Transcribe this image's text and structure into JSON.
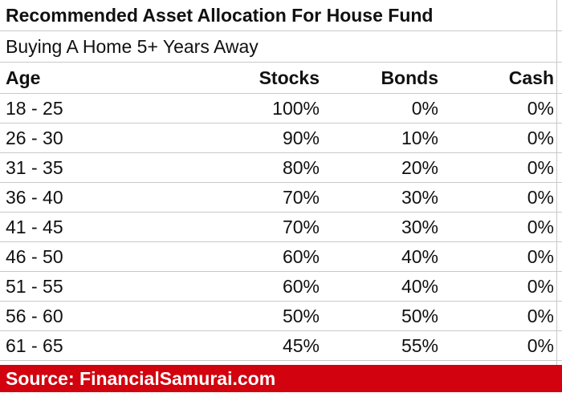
{
  "table": {
    "title": "Recommended Asset Allocation For House Fund",
    "subtitle": "Buying A Home 5+ Years Away",
    "headers": {
      "age": "Age",
      "stocks": "Stocks",
      "bonds": "Bonds",
      "cash": "Cash"
    },
    "rows": [
      {
        "age": "18 - 25",
        "stocks": "100%",
        "bonds": "0%",
        "cash": "0%"
      },
      {
        "age": "26 - 30",
        "stocks": "90%",
        "bonds": "10%",
        "cash": "0%"
      },
      {
        "age": "31 - 35",
        "stocks": "80%",
        "bonds": "20%",
        "cash": "0%"
      },
      {
        "age": "36 - 40",
        "stocks": "70%",
        "bonds": "30%",
        "cash": "0%"
      },
      {
        "age": "41 - 45",
        "stocks": "70%",
        "bonds": "30%",
        "cash": "0%"
      },
      {
        "age": "46 - 50",
        "stocks": "60%",
        "bonds": "40%",
        "cash": "0%"
      },
      {
        "age": "51 - 55",
        "stocks": "60%",
        "bonds": "40%",
        "cash": "0%"
      },
      {
        "age": "56 - 60",
        "stocks": "50%",
        "bonds": "50%",
        "cash": "0%"
      },
      {
        "age": "61 - 65",
        "stocks": "45%",
        "bonds": "55%",
        "cash": "0%"
      }
    ],
    "source": "Source: FinancialSamurai.com"
  },
  "colors": {
    "source_bar": "#d2020e",
    "grid_line": "#c9c9c9",
    "text": "#111111"
  }
}
